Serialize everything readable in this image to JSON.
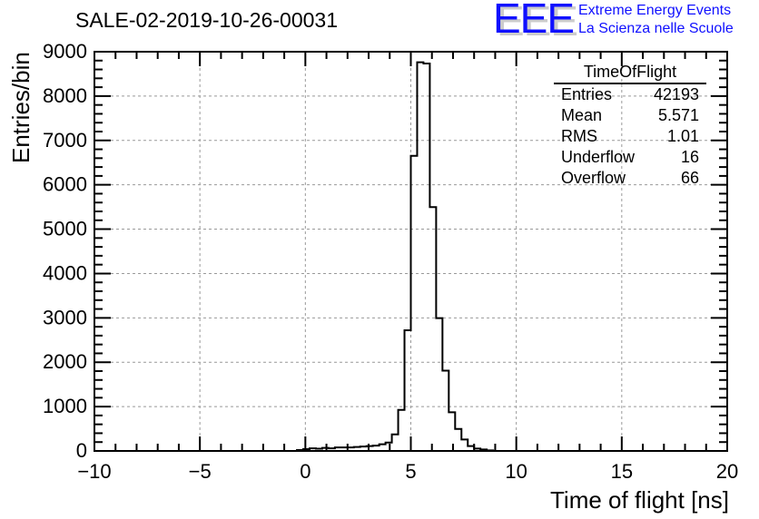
{
  "chart_data": {
    "type": "bar",
    "style": "step-histogram",
    "title": "SALE-02-2019-10-26-00031",
    "xlabel": "Time of flight [ns]",
    "ylabel": "Entries/bin",
    "xlim": [
      -10,
      20
    ],
    "ylim": [
      0,
      9000
    ],
    "bin_width": 0.3,
    "xticks": [
      -10,
      -5,
      0,
      5,
      10,
      15,
      20
    ],
    "xtick_labels": [
      "−10",
      "−5",
      "0",
      "5",
      "10",
      "15",
      "20"
    ],
    "yticks": [
      0,
      1000,
      2000,
      3000,
      4000,
      5000,
      6000,
      7000,
      8000,
      9000
    ],
    "ytick_labels": [
      "0",
      "1000",
      "2000",
      "3000",
      "4000",
      "5000",
      "6000",
      "7000",
      "8000",
      "9000"
    ],
    "grid": true,
    "bins": [
      {
        "low": -0.4,
        "value": 20
      },
      {
        "low": -0.1,
        "value": 40
      },
      {
        "low": 0.2,
        "value": 60
      },
      {
        "low": 0.5,
        "value": 50
      },
      {
        "low": 0.8,
        "value": 70
      },
      {
        "low": 1.1,
        "value": 60
      },
      {
        "low": 1.4,
        "value": 80
      },
      {
        "low": 1.7,
        "value": 80
      },
      {
        "low": 2.0,
        "value": 80
      },
      {
        "low": 2.3,
        "value": 90
      },
      {
        "low": 2.6,
        "value": 100
      },
      {
        "low": 2.9,
        "value": 110
      },
      {
        "low": 3.2,
        "value": 120
      },
      {
        "low": 3.5,
        "value": 150
      },
      {
        "low": 3.8,
        "value": 190
      },
      {
        "low": 4.1,
        "value": 374
      },
      {
        "low": 4.4,
        "value": 925
      },
      {
        "low": 4.7,
        "value": 2720
      },
      {
        "low": 5.0,
        "value": 6653
      },
      {
        "low": 5.3,
        "value": 8762
      },
      {
        "low": 5.6,
        "value": 8735
      },
      {
        "low": 5.9,
        "value": 5497
      },
      {
        "low": 6.2,
        "value": 2993
      },
      {
        "low": 6.5,
        "value": 1810
      },
      {
        "low": 6.8,
        "value": 871
      },
      {
        "low": 7.1,
        "value": 497
      },
      {
        "low": 7.4,
        "value": 259
      },
      {
        "low": 7.7,
        "value": 109
      },
      {
        "low": 8.0,
        "value": 54
      },
      {
        "low": 8.3,
        "value": 34
      },
      {
        "low": 8.6,
        "value": 14
      }
    ],
    "stats": {
      "name": "TimeOfFlight",
      "rows": [
        {
          "label": "Entries",
          "value": "42193"
        },
        {
          "label": "Mean",
          "value": "5.571"
        },
        {
          "label": "RMS",
          "value": "1.01"
        },
        {
          "label": "Underflow",
          "value": "16"
        },
        {
          "label": "Overflow",
          "value": "66"
        }
      ]
    }
  },
  "logo": {
    "mark": "EEE",
    "line1": "Extreme Energy Events",
    "line2": "La Scienza nelle Scuole",
    "color": "#1010ff"
  }
}
